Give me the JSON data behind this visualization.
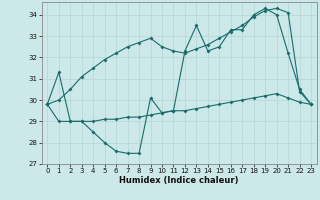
{
  "xlabel": "Humidex (Indice chaleur)",
  "bg_color": "#cce8e8",
  "grid_color": "#b8d8d8",
  "line_color": "#1a6b6b",
  "xlim": [
    -0.5,
    23.5
  ],
  "ylim": [
    27,
    34.6
  ],
  "yticks": [
    27,
    28,
    29,
    30,
    31,
    32,
    33,
    34
  ],
  "xticks": [
    0,
    1,
    2,
    3,
    4,
    5,
    6,
    7,
    8,
    9,
    10,
    11,
    12,
    13,
    14,
    15,
    16,
    17,
    18,
    19,
    20,
    21,
    22,
    23
  ],
  "line1_x": [
    0,
    1,
    2,
    3,
    4,
    5,
    6,
    7,
    8,
    9,
    10,
    11,
    12,
    13,
    14,
    15,
    16,
    17,
    18,
    19,
    20,
    21,
    22,
    23
  ],
  "line1_y": [
    29.8,
    31.3,
    29.0,
    29.0,
    28.5,
    28.0,
    27.6,
    27.5,
    27.5,
    30.1,
    29.4,
    29.5,
    32.3,
    33.5,
    32.3,
    32.5,
    33.3,
    33.3,
    34.0,
    34.3,
    34.0,
    32.2,
    30.5,
    29.8
  ],
  "line2_x": [
    0,
    1,
    2,
    3,
    4,
    5,
    6,
    7,
    8,
    9,
    10,
    11,
    12,
    13,
    14,
    15,
    16,
    17,
    18,
    19,
    20,
    21,
    22,
    23
  ],
  "line2_y": [
    29.8,
    30.0,
    30.5,
    31.1,
    31.5,
    31.9,
    32.2,
    32.5,
    32.7,
    32.9,
    32.5,
    32.3,
    32.2,
    32.4,
    32.6,
    32.9,
    33.2,
    33.5,
    33.9,
    34.2,
    34.3,
    34.1,
    30.4,
    29.8
  ],
  "line3_x": [
    0,
    1,
    2,
    3,
    4,
    5,
    6,
    7,
    8,
    9,
    10,
    11,
    12,
    13,
    14,
    15,
    16,
    17,
    18,
    19,
    20,
    21,
    22,
    23
  ],
  "line3_y": [
    29.8,
    29.0,
    29.0,
    29.0,
    29.0,
    29.1,
    29.1,
    29.2,
    29.2,
    29.3,
    29.4,
    29.5,
    29.5,
    29.6,
    29.7,
    29.8,
    29.9,
    30.0,
    30.1,
    30.2,
    30.3,
    30.1,
    29.9,
    29.8
  ]
}
